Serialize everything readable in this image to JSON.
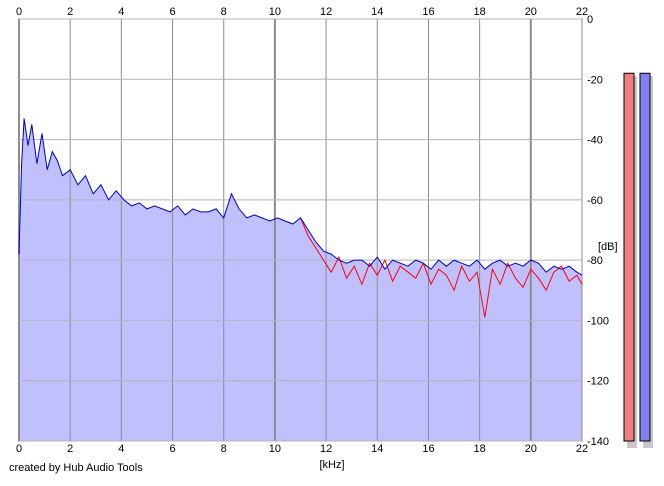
{
  "footer": {
    "credit": "created by Hub Audio Tools"
  },
  "chart_data": {
    "type": "area",
    "xlabel": "[kHz]",
    "ylabel": "[dB]",
    "xlim": [
      0,
      22
    ],
    "ylim": [
      -140,
      0
    ],
    "x_ticks": [
      "0",
      "2",
      "4",
      "6",
      "8",
      "10",
      "12",
      "14",
      "16",
      "18",
      "20",
      "22"
    ],
    "y_ticks": [
      "0",
      "-20",
      "-40",
      "-60",
      "-80",
      "-100",
      "-120",
      "-140"
    ],
    "grid": true,
    "series": [
      {
        "color": "#0000cc",
        "fill": "#c0c0ff",
        "x": [
          0.0,
          0.1,
          0.2,
          0.35,
          0.5,
          0.7,
          0.9,
          1.1,
          1.3,
          1.5,
          1.7,
          2.0,
          2.3,
          2.6,
          2.9,
          3.2,
          3.5,
          3.8,
          4.1,
          4.4,
          4.7,
          5.0,
          5.3,
          5.6,
          5.9,
          6.2,
          6.5,
          6.8,
          7.1,
          7.4,
          7.7,
          8.0,
          8.3,
          8.6,
          8.9,
          9.2,
          9.5,
          9.8,
          10.1,
          10.4,
          10.7,
          11.0,
          11.3,
          11.6,
          11.9,
          12.2,
          12.5,
          12.8,
          13.1,
          13.4,
          13.7,
          14.0,
          14.3,
          14.6,
          14.9,
          15.2,
          15.5,
          15.8,
          16.1,
          16.4,
          16.7,
          17.0,
          17.3,
          17.6,
          17.9,
          18.2,
          18.5,
          18.8,
          19.1,
          19.4,
          19.7,
          20.0,
          20.3,
          20.6,
          20.9,
          21.2,
          21.5,
          21.8,
          22.0
        ],
        "y": [
          -78,
          -48,
          -33,
          -42,
          -35,
          -48,
          -38,
          -50,
          -44,
          -47,
          -52,
          -50,
          -55,
          -52,
          -58,
          -55,
          -60,
          -57,
          -60,
          -62,
          -61,
          -63,
          -62,
          -63,
          -64,
          -62,
          -65,
          -63,
          -64,
          -64,
          -63,
          -66,
          -58,
          -63,
          -66,
          -65,
          -66,
          -67,
          -66,
          -67,
          -68,
          -66,
          -70,
          -74,
          -77,
          -78,
          -80,
          -81,
          -80,
          -80,
          -82,
          -79,
          -83,
          -80,
          -81,
          -82,
          -80,
          -81,
          -83,
          -80,
          -82,
          -80,
          -81,
          -82,
          -80,
          -83,
          -81,
          -80,
          -82,
          -81,
          -82,
          -80,
          -81,
          -84,
          -82,
          -83,
          -82,
          -84,
          -85
        ]
      },
      {
        "color": "#ff0000",
        "x": [
          11.0,
          11.3,
          11.6,
          11.9,
          12.2,
          12.5,
          12.8,
          13.1,
          13.4,
          13.7,
          14.0,
          14.3,
          14.6,
          14.9,
          15.2,
          15.5,
          15.8,
          16.1,
          16.4,
          16.7,
          17.0,
          17.3,
          17.6,
          17.9,
          18.2,
          18.5,
          18.8,
          19.1,
          19.4,
          19.7,
          20.0,
          20.3,
          20.6,
          20.9,
          21.2,
          21.5,
          21.8,
          22.0
        ],
        "y": [
          -66,
          -72,
          -76,
          -80,
          -84,
          -79,
          -86,
          -82,
          -88,
          -81,
          -85,
          -80,
          -87,
          -82,
          -84,
          -86,
          -81,
          -88,
          -83,
          -85,
          -90,
          -82,
          -87,
          -84,
          -99,
          -83,
          -88,
          -81,
          -86,
          -89,
          -83,
          -86,
          -90,
          -84,
          -82,
          -87,
          -85,
          -88
        ]
      }
    ],
    "meters": [
      {
        "channel": "left",
        "color": "#f08080",
        "level_db": -18
      },
      {
        "channel": "right",
        "color": "#8080f0",
        "level_db": -18
      }
    ]
  }
}
